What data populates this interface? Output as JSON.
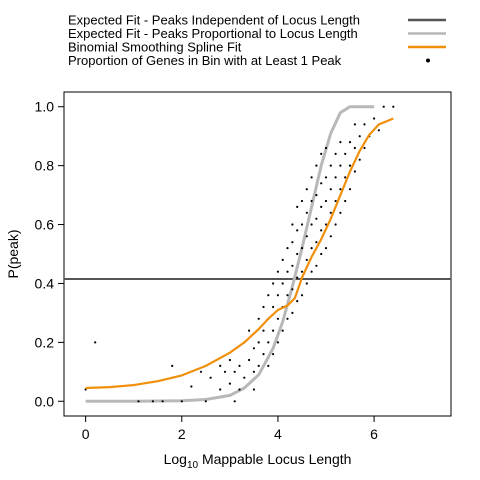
{
  "chart_data": {
    "type": "scatter",
    "title": "",
    "xlabel": "Log",
    "xlabel_sub": "10",
    "xlabel_rest": " Mappable Locus Length",
    "ylabel": "P(peak)",
    "xlim": [
      -0.45,
      7.6
    ],
    "ylim": [
      -0.05,
      1.05
    ],
    "xticks": [
      0,
      2,
      4,
      6
    ],
    "xtick_labels": [
      "0",
      "2",
      "4",
      "6"
    ],
    "yticks": [
      0.0,
      0.2,
      0.4,
      0.6,
      0.8,
      1.0
    ],
    "ytick_labels": [
      "0.0",
      "0.2",
      "0.4",
      "0.6",
      "0.8",
      "1.0"
    ],
    "grid": false,
    "legend_position": "top",
    "legend": [
      {
        "label": "Expected Fit - Peaks Independent of Locus Length",
        "kind": "line",
        "color": "#555555"
      },
      {
        "label": "Expected Fit - Peaks Proportional to Locus Length",
        "kind": "line",
        "color": "#b8b8b8"
      },
      {
        "label": "Binomial Smoothing Spline Fit",
        "kind": "line",
        "color": "#f0900a"
      },
      {
        "label": "Proportion of Genes in Bin with at Least 1 Peak",
        "kind": "point",
        "color": "#000000"
      }
    ],
    "series": [
      {
        "name": "Expected Fit - Peaks Independent of Locus Length",
        "kind": "hline",
        "color": "#555555",
        "y": 0.415
      },
      {
        "name": "Expected Fit - Peaks Proportional to Locus Length",
        "kind": "line",
        "color": "#b8b8b8",
        "x": [
          0,
          1,
          2,
          2.5,
          3,
          3.3,
          3.6,
          3.9,
          4.1,
          4.3,
          4.5,
          4.7,
          4.9,
          5.1,
          5.3,
          5.5,
          5.7,
          6.0
        ],
        "y": [
          0.0,
          0.0,
          0.002,
          0.006,
          0.02,
          0.045,
          0.09,
          0.18,
          0.27,
          0.39,
          0.52,
          0.66,
          0.8,
          0.91,
          0.98,
          1.0,
          1.0,
          1.0
        ]
      },
      {
        "name": "Binomial Smoothing Spline Fit",
        "kind": "line",
        "color": "#f0900a",
        "x": [
          0,
          0.5,
          1.0,
          1.5,
          2.0,
          2.5,
          3.0,
          3.3,
          3.6,
          3.8,
          4.0,
          4.2,
          4.35,
          4.5,
          4.7,
          4.9,
          5.1,
          5.3,
          5.5,
          5.7,
          5.9,
          6.1,
          6.4
        ],
        "y": [
          0.045,
          0.048,
          0.055,
          0.068,
          0.088,
          0.12,
          0.165,
          0.2,
          0.245,
          0.28,
          0.31,
          0.325,
          0.35,
          0.42,
          0.49,
          0.55,
          0.62,
          0.7,
          0.78,
          0.85,
          0.905,
          0.94,
          0.96
        ]
      },
      {
        "name": "Proportion of Genes in Bin with at Least 1 Peak",
        "kind": "points",
        "color": "#000000",
        "points": [
          [
            0.0,
            0.04
          ],
          [
            0.2,
            0.2
          ],
          [
            1.1,
            0.0
          ],
          [
            1.4,
            0.0
          ],
          [
            1.6,
            0.0
          ],
          [
            1.8,
            0.12
          ],
          [
            2.0,
            0.0
          ],
          [
            2.2,
            0.05
          ],
          [
            2.4,
            0.1
          ],
          [
            2.5,
            0.0
          ],
          [
            2.6,
            0.08
          ],
          [
            2.8,
            0.04
          ],
          [
            2.8,
            0.12
          ],
          [
            2.9,
            0.1
          ],
          [
            3.0,
            0.06
          ],
          [
            3.0,
            0.14
          ],
          [
            3.1,
            0.0
          ],
          [
            3.1,
            0.1
          ],
          [
            3.2,
            0.04
          ],
          [
            3.2,
            0.12
          ],
          [
            3.3,
            0.2
          ],
          [
            3.3,
            0.08
          ],
          [
            3.4,
            0.14
          ],
          [
            3.4,
            0.24
          ],
          [
            3.5,
            0.1
          ],
          [
            3.5,
            0.18
          ],
          [
            3.5,
            0.04
          ],
          [
            3.6,
            0.2
          ],
          [
            3.6,
            0.28
          ],
          [
            3.6,
            0.12
          ],
          [
            3.7,
            0.16
          ],
          [
            3.7,
            0.24
          ],
          [
            3.7,
            0.32
          ],
          [
            3.8,
            0.2
          ],
          [
            3.8,
            0.28
          ],
          [
            3.8,
            0.36
          ],
          [
            3.8,
            0.12
          ],
          [
            3.9,
            0.24
          ],
          [
            3.9,
            0.32
          ],
          [
            3.9,
            0.4
          ],
          [
            3.9,
            0.16
          ],
          [
            4.0,
            0.2
          ],
          [
            4.0,
            0.28
          ],
          [
            4.0,
            0.36
          ],
          [
            4.0,
            0.44
          ],
          [
            4.1,
            0.24
          ],
          [
            4.1,
            0.32
          ],
          [
            4.1,
            0.4
          ],
          [
            4.1,
            0.48
          ],
          [
            4.2,
            0.28
          ],
          [
            4.2,
            0.36
          ],
          [
            4.2,
            0.44
          ],
          [
            4.2,
            0.52
          ],
          [
            4.3,
            0.3
          ],
          [
            4.3,
            0.38
          ],
          [
            4.3,
            0.46
          ],
          [
            4.3,
            0.54
          ],
          [
            4.3,
            0.6
          ],
          [
            4.4,
            0.34
          ],
          [
            4.4,
            0.42
          ],
          [
            4.4,
            0.5
          ],
          [
            4.4,
            0.58
          ],
          [
            4.4,
            0.66
          ],
          [
            4.5,
            0.36
          ],
          [
            4.5,
            0.44
          ],
          [
            4.5,
            0.52
          ],
          [
            4.5,
            0.6
          ],
          [
            4.5,
            0.68
          ],
          [
            4.6,
            0.4
          ],
          [
            4.6,
            0.48
          ],
          [
            4.6,
            0.56
          ],
          [
            4.6,
            0.64
          ],
          [
            4.6,
            0.72
          ],
          [
            4.7,
            0.44
          ],
          [
            4.7,
            0.52
          ],
          [
            4.7,
            0.6
          ],
          [
            4.7,
            0.68
          ],
          [
            4.7,
            0.76
          ],
          [
            4.8,
            0.46
          ],
          [
            4.8,
            0.54
          ],
          [
            4.8,
            0.62
          ],
          [
            4.8,
            0.7
          ],
          [
            4.8,
            0.8
          ],
          [
            4.9,
            0.5
          ],
          [
            4.9,
            0.58
          ],
          [
            4.9,
            0.66
          ],
          [
            4.9,
            0.74
          ],
          [
            4.9,
            0.84
          ],
          [
            5.0,
            0.52
          ],
          [
            5.0,
            0.6
          ],
          [
            5.0,
            0.68
          ],
          [
            5.0,
            0.76
          ],
          [
            5.0,
            0.86
          ],
          [
            5.1,
            0.56
          ],
          [
            5.1,
            0.64
          ],
          [
            5.1,
            0.72
          ],
          [
            5.1,
            0.8
          ],
          [
            5.2,
            0.6
          ],
          [
            5.2,
            0.68
          ],
          [
            5.2,
            0.76
          ],
          [
            5.2,
            0.84
          ],
          [
            5.3,
            0.64
          ],
          [
            5.3,
            0.72
          ],
          [
            5.3,
            0.8
          ],
          [
            5.3,
            0.88
          ],
          [
            5.4,
            0.68
          ],
          [
            5.4,
            0.76
          ],
          [
            5.4,
            0.84
          ],
          [
            5.5,
            0.72
          ],
          [
            5.5,
            0.8
          ],
          [
            5.5,
            0.88
          ],
          [
            5.6,
            0.78
          ],
          [
            5.6,
            0.86
          ],
          [
            5.6,
            0.94
          ],
          [
            5.7,
            0.82
          ],
          [
            5.7,
            0.9
          ],
          [
            5.8,
            0.86
          ],
          [
            5.8,
            0.94
          ],
          [
            5.9,
            0.9
          ],
          [
            6.0,
            0.96
          ],
          [
            6.1,
            0.92
          ],
          [
            6.2,
            1.0
          ],
          [
            6.4,
            1.0
          ]
        ]
      }
    ]
  }
}
